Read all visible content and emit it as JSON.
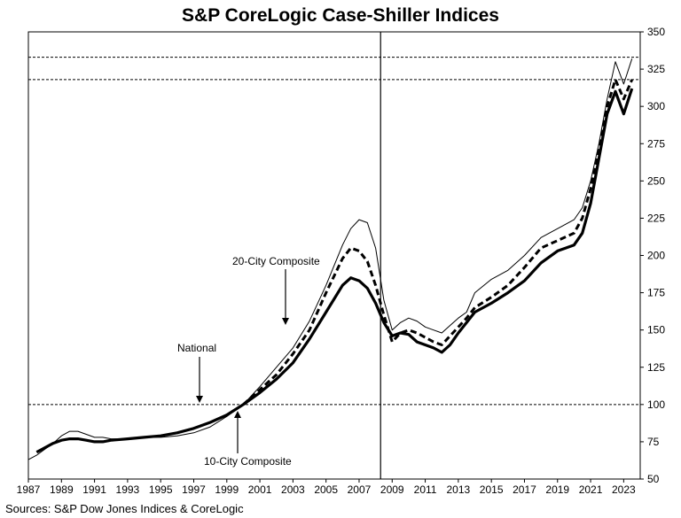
{
  "chart_data": {
    "type": "line",
    "title": "S&P CoreLogic Case-Shiller Indices",
    "source": "Sources: S&P Dow Jones Indices & CoreLogic",
    "ylim": [
      50,
      350
    ],
    "xlim": [
      1987,
      2024
    ],
    "y_axis_position": "right",
    "yticks": [
      50,
      75,
      100,
      125,
      150,
      175,
      200,
      225,
      250,
      275,
      300,
      325,
      350
    ],
    "xticks": [
      1987,
      1989,
      1991,
      1993,
      1995,
      1997,
      1999,
      2001,
      2003,
      2005,
      2007,
      2009,
      2011,
      2013,
      2015,
      2017,
      2019,
      2021,
      2023
    ],
    "grid": false,
    "reference_lines": [
      {
        "orientation": "horizontal",
        "value": 100,
        "style": "dashed"
      },
      {
        "orientation": "horizontal",
        "value": 318,
        "style": "dashed"
      },
      {
        "orientation": "horizontal",
        "value": 333,
        "style": "dashed"
      },
      {
        "orientation": "vertical",
        "value": 2008.3,
        "style": "solid"
      }
    ],
    "series": [
      {
        "name": "National",
        "style": "thin",
        "x": [
          1987,
          1987.5,
          1988,
          1988.5,
          1989,
          1989.5,
          1990,
          1990.5,
          1991,
          1991.5,
          1992,
          1993,
          1994,
          1995,
          1996,
          1997,
          1998,
          1999,
          2000,
          2001,
          2002,
          2003,
          2004,
          2005,
          2006,
          2006.5,
          2007,
          2007.5,
          2008,
          2008.5,
          2009,
          2009.5,
          2010,
          2010.5,
          2011,
          2011.5,
          2012,
          2012.5,
          2013,
          2013.5,
          2014,
          2015,
          2016,
          2017,
          2018,
          2019,
          2020,
          2020.5,
          2021,
          2021.5,
          2022,
          2022.5,
          2023,
          2023.5
        ],
        "values": [
          63,
          66,
          70,
          74,
          79,
          82,
          82,
          80,
          78,
          78,
          77,
          77,
          78,
          78,
          79,
          81,
          85,
          92,
          100,
          112,
          125,
          138,
          156,
          180,
          207,
          218,
          224,
          222,
          205,
          170,
          150,
          155,
          158,
          156,
          152,
          150,
          148,
          153,
          158,
          162,
          175,
          184,
          190,
          200,
          212,
          218,
          224,
          232,
          250,
          275,
          305,
          330,
          315,
          332
        ]
      },
      {
        "name": "20-City Composite",
        "style": "dashed",
        "x": [
          2000,
          2001,
          2002,
          2003,
          2004,
          2005,
          2006,
          2006.5,
          2007,
          2007.5,
          2008,
          2008.5,
          2009,
          2009.5,
          2010,
          2010.5,
          2011,
          2011.5,
          2012,
          2012.5,
          2013,
          2013.5,
          2014,
          2015,
          2016,
          2017,
          2018,
          2019,
          2020,
          2020.5,
          2021,
          2021.5,
          2022,
          2022.5,
          2023,
          2023.5
        ],
        "values": [
          100,
          110,
          120,
          134,
          150,
          175,
          198,
          205,
          203,
          196,
          180,
          160,
          142,
          148,
          150,
          148,
          145,
          142,
          140,
          146,
          152,
          158,
          165,
          172,
          180,
          192,
          205,
          210,
          215,
          225,
          245,
          270,
          300,
          318,
          305,
          318
        ]
      },
      {
        "name": "10-City Composite",
        "style": "thick",
        "x": [
          1987.5,
          1988,
          1988.5,
          1989,
          1989.5,
          1990,
          1990.5,
          1991,
          1991.5,
          1992,
          1993,
          1994,
          1995,
          1996,
          1997,
          1998,
          1999,
          2000,
          2001,
          2002,
          2003,
          2004,
          2005,
          2006,
          2006.5,
          2007,
          2007.5,
          2008,
          2008.5,
          2009,
          2009.5,
          2010,
          2010.5,
          2011,
          2011.5,
          2012,
          2012.5,
          2013,
          2013.5,
          2014,
          2015,
          2016,
          2017,
          2018,
          2019,
          2020,
          2020.5,
          2021,
          2021.5,
          2022,
          2022.5,
          2023,
          2023.5
        ],
        "values": [
          68,
          71,
          74,
          76,
          77,
          77,
          76,
          75,
          75,
          76,
          77,
          78,
          79,
          81,
          84,
          88,
          93,
          100,
          108,
          117,
          128,
          144,
          162,
          180,
          185,
          183,
          178,
          168,
          155,
          146,
          148,
          147,
          142,
          140,
          138,
          135,
          140,
          148,
          155,
          162,
          168,
          175,
          183,
          195,
          203,
          207,
          215,
          235,
          265,
          295,
          310,
          295,
          312
        ]
      }
    ],
    "annotations": [
      {
        "text": "20-City Composite",
        "points_to": "20-City Composite"
      },
      {
        "text": "National",
        "points_to": "National"
      },
      {
        "text": "10-City Composite",
        "points_to": "10-City Composite"
      }
    ]
  }
}
